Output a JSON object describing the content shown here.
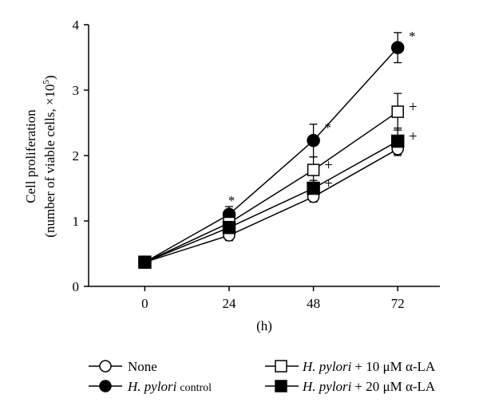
{
  "chart_data": {
    "type": "line",
    "title": "",
    "xlabel": "(h)",
    "ylabel_line1": "Cell proliferation",
    "ylabel_line2": "(number of viable cells, ×10",
    "ylabel_superscript": "5",
    "ylabel_close": ")",
    "x": [
      0,
      24,
      48,
      72
    ],
    "x_tick_labels": [
      "0",
      "24",
      "48",
      "72"
    ],
    "y_tick_labels": [
      "0",
      "1",
      "2",
      "3",
      "4"
    ],
    "y_ticks": [
      0,
      1,
      2,
      3,
      4
    ],
    "xlim": [
      -16,
      84
    ],
    "ylim": [
      0,
      4
    ],
    "grid": false,
    "legend_position": "bottom",
    "series": [
      {
        "name": "None",
        "marker": "open-circle",
        "values": [
          0.37,
          0.78,
          1.37,
          2.1
        ],
        "errors": [
          0.03,
          0.08,
          0.08,
          0.1
        ],
        "annotations": [
          "",
          "",
          "",
          ""
        ]
      },
      {
        "name": "H. pylori control",
        "name_italic": "H. pylori",
        "name_rest": "control",
        "marker": "filled-circle",
        "values": [
          0.37,
          1.1,
          2.23,
          3.65
        ],
        "errors": [
          0.03,
          0.12,
          0.25,
          0.23
        ],
        "annotations": [
          "",
          "*",
          "*",
          "*"
        ]
      },
      {
        "name": "H. pylori + 10 μM α-LA",
        "name_italic": "H. pylori",
        "name_rest": "+ 10 μM α-LA",
        "marker": "open-square",
        "values": [
          0.37,
          0.97,
          1.78,
          2.67
        ],
        "errors": [
          0.03,
          0.1,
          0.2,
          0.28
        ],
        "annotations": [
          "",
          "",
          "+",
          "+"
        ]
      },
      {
        "name": "H. pylori + 20 μM α-LA",
        "name_italic": "H. pylori",
        "name_rest": "+ 20 μM α-LA",
        "marker": "filled-square",
        "values": [
          0.37,
          0.9,
          1.5,
          2.22
        ],
        "errors": [
          0.03,
          0.08,
          0.12,
          0.2
        ],
        "annotations": [
          "",
          "",
          "+",
          "+"
        ]
      }
    ]
  }
}
